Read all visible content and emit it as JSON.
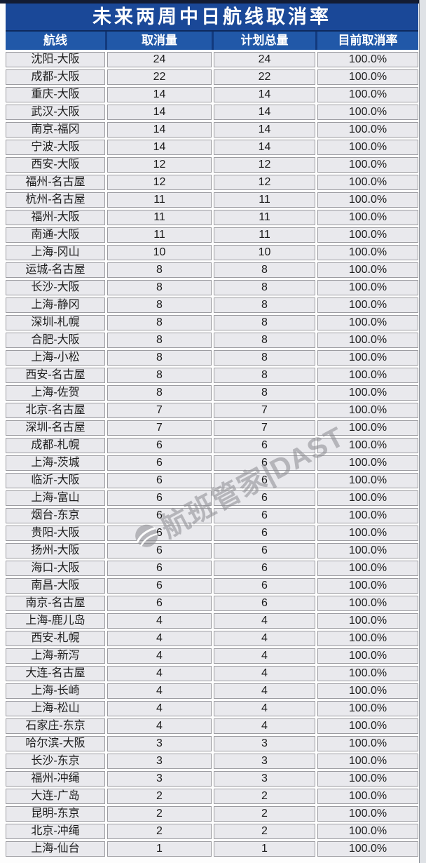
{
  "title": "未来两周中日航线取消率",
  "watermark": {
    "text": "航班管家|DAST"
  },
  "colors": {
    "top_edge": "#131c33",
    "title_bg": "#1a4898",
    "header_bg": "#2158a8",
    "header_gap": "#123a7e",
    "cell_bg": "#e9e9ed",
    "cell_border": "#9c9ca1",
    "body_text": "#1c1c1c"
  },
  "chart_data": {
    "type": "table",
    "title": "未来两周中日航线取消率",
    "columns": [
      "航线",
      "取消量",
      "计划总量",
      "目前取消率"
    ],
    "rows": [
      [
        "沈阳-大阪",
        24,
        24,
        "100.0%"
      ],
      [
        "成都-大阪",
        22,
        22,
        "100.0%"
      ],
      [
        "重庆-大阪",
        14,
        14,
        "100.0%"
      ],
      [
        "武汉-大阪",
        14,
        14,
        "100.0%"
      ],
      [
        "南京-福冈",
        14,
        14,
        "100.0%"
      ],
      [
        "宁波-大阪",
        14,
        14,
        "100.0%"
      ],
      [
        "西安-大阪",
        12,
        12,
        "100.0%"
      ],
      [
        "福州-名古屋",
        12,
        12,
        "100.0%"
      ],
      [
        "杭州-名古屋",
        11,
        11,
        "100.0%"
      ],
      [
        "福州-大阪",
        11,
        11,
        "100.0%"
      ],
      [
        "南通-大阪",
        11,
        11,
        "100.0%"
      ],
      [
        "上海-冈山",
        10,
        10,
        "100.0%"
      ],
      [
        "运城-名古屋",
        8,
        8,
        "100.0%"
      ],
      [
        "长沙-大阪",
        8,
        8,
        "100.0%"
      ],
      [
        "上海-静冈",
        8,
        8,
        "100.0%"
      ],
      [
        "深圳-札幌",
        8,
        8,
        "100.0%"
      ],
      [
        "合肥-大阪",
        8,
        8,
        "100.0%"
      ],
      [
        "上海-小松",
        8,
        8,
        "100.0%"
      ],
      [
        "西安-名古屋",
        8,
        8,
        "100.0%"
      ],
      [
        "上海-佐贺",
        8,
        8,
        "100.0%"
      ],
      [
        "北京-名古屋",
        7,
        7,
        "100.0%"
      ],
      [
        "深圳-名古屋",
        7,
        7,
        "100.0%"
      ],
      [
        "成都-札幌",
        6,
        6,
        "100.0%"
      ],
      [
        "上海-茨城",
        6,
        6,
        "100.0%"
      ],
      [
        "临沂-大阪",
        6,
        6,
        "100.0%"
      ],
      [
        "上海-富山",
        6,
        6,
        "100.0%"
      ],
      [
        "烟台-东京",
        6,
        6,
        "100.0%"
      ],
      [
        "贵阳-大阪",
        6,
        6,
        "100.0%"
      ],
      [
        "扬州-大阪",
        6,
        6,
        "100.0%"
      ],
      [
        "海口-大阪",
        6,
        6,
        "100.0%"
      ],
      [
        "南昌-大阪",
        6,
        6,
        "100.0%"
      ],
      [
        "南京-名古屋",
        6,
        6,
        "100.0%"
      ],
      [
        "上海-鹿儿岛",
        4,
        4,
        "100.0%"
      ],
      [
        "西安-札幌",
        4,
        4,
        "100.0%"
      ],
      [
        "上海-新泻",
        4,
        4,
        "100.0%"
      ],
      [
        "大连-名古屋",
        4,
        4,
        "100.0%"
      ],
      [
        "上海-长崎",
        4,
        4,
        "100.0%"
      ],
      [
        "上海-松山",
        4,
        4,
        "100.0%"
      ],
      [
        "石家庄-东京",
        4,
        4,
        "100.0%"
      ],
      [
        "哈尔滨-大阪",
        3,
        3,
        "100.0%"
      ],
      [
        "长沙-东京",
        3,
        3,
        "100.0%"
      ],
      [
        "福州-冲绳",
        3,
        3,
        "100.0%"
      ],
      [
        "大连-广岛",
        2,
        2,
        "100.0%"
      ],
      [
        "昆明-东京",
        2,
        2,
        "100.0%"
      ],
      [
        "北京-冲绳",
        2,
        2,
        "100.0%"
      ],
      [
        "上海-仙台",
        1,
        1,
        "100.0%"
      ]
    ]
  }
}
